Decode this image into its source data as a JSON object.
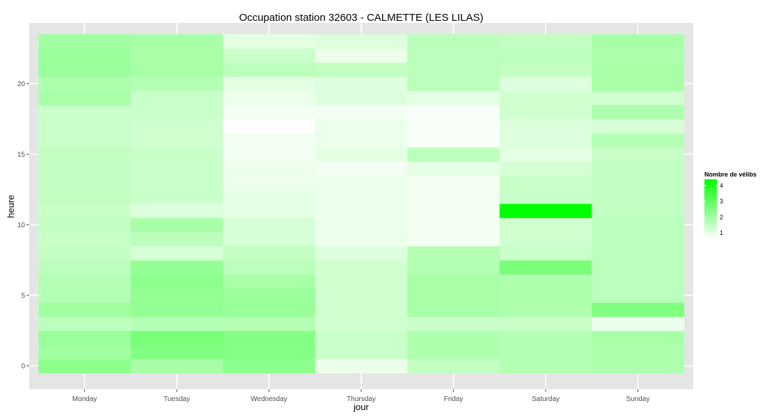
{
  "chart_data": {
    "type": "heatmap",
    "title": "Occupation station 32603 - CALMETTE (LES LILAS)",
    "xlabel": "jour",
    "ylabel": "heure",
    "x_categories": [
      "Monday",
      "Tuesday",
      "Wednesday",
      "Thursday",
      "Friday",
      "Saturday",
      "Sunday"
    ],
    "y_range": [
      -0.5,
      23.5
    ],
    "y_ticks": [
      0,
      5,
      10,
      15,
      20
    ],
    "grid": true,
    "color_scale": {
      "low": "#ffffff",
      "high": "#00ff00",
      "min": 0.6,
      "max": 4.4
    },
    "legend": {
      "title": "Nombre de vélibs",
      "ticks": [
        1,
        2,
        3,
        4
      ],
      "placement": "right"
    },
    "z_by_hour": [
      [
        2.3,
        1.9,
        2.3,
        0.9,
        1.5,
        1.7,
        1.8
      ],
      [
        2.0,
        2.5,
        2.4,
        1.4,
        1.8,
        1.7,
        1.8
      ],
      [
        2.1,
        2.6,
        2.4,
        1.4,
        1.8,
        1.7,
        1.9
      ],
      [
        1.6,
        1.7,
        1.7,
        1.3,
        1.4,
        1.4,
        0.9
      ],
      [
        2.0,
        2.2,
        2.1,
        1.3,
        1.9,
        1.8,
        2.5
      ],
      [
        1.7,
        2.2,
        2.1,
        1.3,
        1.9,
        1.8,
        1.6
      ],
      [
        1.7,
        2.3,
        1.9,
        1.3,
        1.9,
        1.8,
        1.6
      ],
      [
        1.6,
        2.2,
        1.6,
        1.3,
        1.7,
        2.6,
        1.6
      ],
      [
        1.5,
        1.2,
        1.5,
        1.1,
        1.7,
        1.4,
        1.6
      ],
      [
        1.4,
        1.6,
        1.2,
        0.9,
        0.8,
        1.3,
        1.6
      ],
      [
        1.5,
        1.9,
        1.2,
        0.9,
        0.8,
        1.3,
        1.6
      ],
      [
        1.4,
        1.1,
        1.0,
        0.9,
        0.8,
        4.4,
        1.5
      ],
      [
        1.5,
        1.4,
        1.0,
        0.9,
        0.8,
        1.4,
        1.5
      ],
      [
        1.5,
        1.4,
        0.9,
        0.9,
        0.8,
        1.4,
        1.5
      ],
      [
        1.5,
        1.4,
        0.9,
        0.8,
        1.0,
        1.2,
        1.5
      ],
      [
        1.5,
        1.4,
        0.8,
        1.0,
        1.6,
        1.0,
        1.4
      ],
      [
        1.4,
        1.3,
        0.8,
        0.9,
        0.7,
        1.1,
        1.7
      ],
      [
        1.4,
        1.3,
        0.6,
        0.9,
        0.7,
        1.1,
        1.2
      ],
      [
        1.4,
        1.4,
        0.8,
        0.8,
        0.7,
        1.3,
        1.8
      ],
      [
        1.9,
        1.4,
        0.9,
        1.1,
        1.0,
        1.3,
        1.3
      ],
      [
        1.8,
        1.7,
        1.0,
        1.1,
        1.6,
        1.1,
        1.9
      ],
      [
        2.1,
        1.9,
        1.6,
        1.5,
        1.6,
        1.5,
        1.9
      ],
      [
        2.1,
        1.9,
        1.4,
        0.9,
        1.6,
        1.6,
        1.8
      ],
      [
        2.0,
        1.9,
        1.0,
        1.1,
        1.6,
        1.5,
        1.9
      ]
    ]
  }
}
